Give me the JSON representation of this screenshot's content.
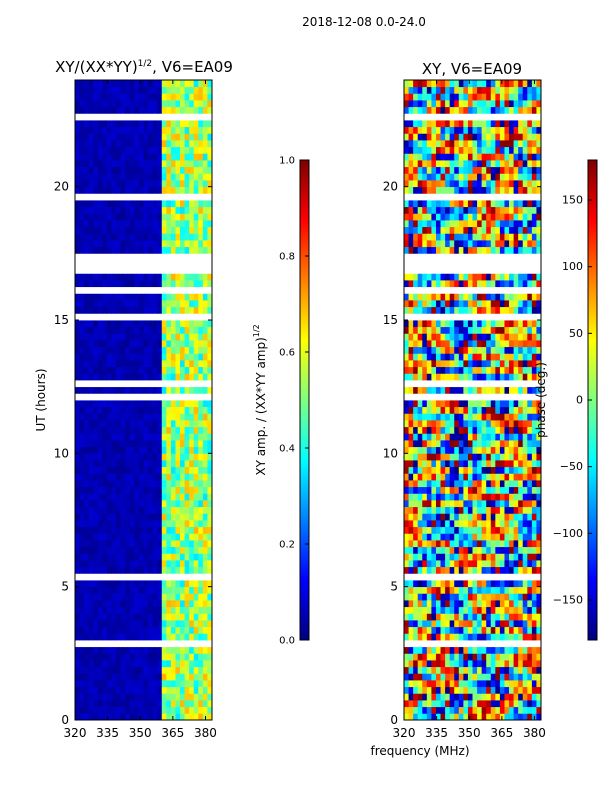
{
  "figure": {
    "suptitle": "2018-12-08 0.0-24.0",
    "xlabel": "frequency (MHz)"
  },
  "colors": {
    "jet": [
      "#00007f",
      "#0000ff",
      "#007fff",
      "#00ffff",
      "#7fff7f",
      "#ffff00",
      "#ff7f00",
      "#ff0000",
      "#7f0000"
    ],
    "axis": "#000000",
    "background": "#ffffff"
  },
  "chart_data": [
    {
      "type": "heatmap",
      "title_main": "XY/(XX*YY)",
      "title_exp": "1/2",
      "title_rest": ", V6=EA09",
      "xlabel": "",
      "ylabel": "UT (hours)",
      "xlim": [
        320,
        383
      ],
      "ylim": [
        0,
        24
      ],
      "xticks": [
        320,
        335,
        350,
        365,
        380
      ],
      "yticks": [
        0,
        5,
        10,
        15,
        20
      ],
      "colorbar": {
        "label_main": "XY amp. / (XX*YY amp)",
        "label_exp": "1/2",
        "range": [
          0.0,
          1.0
        ],
        "ticks": [
          "0.0",
          "0.2",
          "0.4",
          "0.6",
          "0.8",
          "1.0"
        ]
      },
      "signal_band_mhz": [
        360,
        383
      ],
      "gaps_hours": [
        [
          16.7,
          17.4
        ],
        [
          2.8,
          3.0
        ]
      ]
    },
    {
      "type": "heatmap",
      "title": "XY, V6=EA09",
      "xlabel": "",
      "ylabel": "",
      "xlim": [
        320,
        383
      ],
      "ylim": [
        0,
        24
      ],
      "xticks": [
        320,
        335,
        350,
        365,
        380
      ],
      "yticks": [
        0,
        5,
        10,
        15,
        20
      ],
      "colorbar": {
        "label": "phase (deg.)",
        "range": [
          -180,
          180
        ],
        "ticks": [
          "150",
          "100",
          "50",
          "0",
          "−50",
          "−100",
          "−150"
        ],
        "tick_values": [
          150,
          100,
          50,
          0,
          -50,
          -100,
          -150
        ]
      },
      "gaps_hours": [
        [
          16.7,
          17.4
        ],
        [
          2.8,
          3.0
        ]
      ]
    }
  ]
}
